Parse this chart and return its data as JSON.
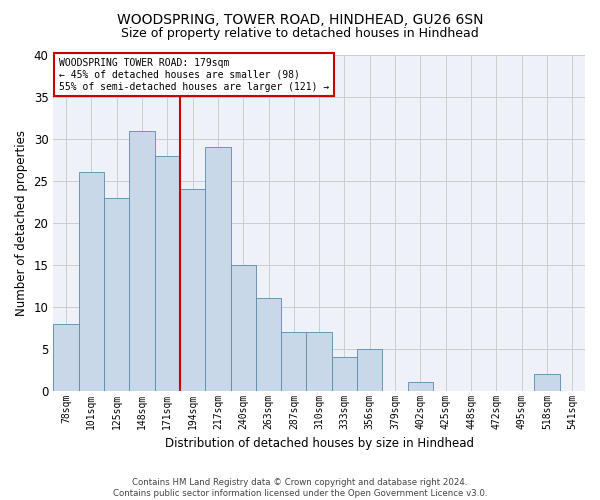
{
  "title1": "WOODSPRING, TOWER ROAD, HINDHEAD, GU26 6SN",
  "title2": "Size of property relative to detached houses in Hindhead",
  "xlabel": "Distribution of detached houses by size in Hindhead",
  "ylabel": "Number of detached properties",
  "categories": [
    "78sqm",
    "101sqm",
    "125sqm",
    "148sqm",
    "171sqm",
    "194sqm",
    "217sqm",
    "240sqm",
    "263sqm",
    "287sqm",
    "310sqm",
    "333sqm",
    "356sqm",
    "379sqm",
    "402sqm",
    "425sqm",
    "448sqm",
    "472sqm",
    "495sqm",
    "518sqm",
    "541sqm"
  ],
  "values": [
    8,
    26,
    23,
    31,
    28,
    24,
    29,
    15,
    11,
    7,
    7,
    4,
    5,
    0,
    1,
    0,
    0,
    0,
    0,
    2,
    0
  ],
  "bar_color": "#c8d8e8",
  "bar_edge_color": "#5a8ab0",
  "property_line_x": 4.5,
  "annotation_line1": "WOODSPRING TOWER ROAD: 179sqm",
  "annotation_line2": "← 45% of detached houses are smaller (98)",
  "annotation_line3": "55% of semi-detached houses are larger (121) →",
  "annotation_box_color": "#ffffff",
  "annotation_box_edge": "#cc0000",
  "vline_color": "#cc0000",
  "ylim": [
    0,
    40
  ],
  "yticks": [
    0,
    5,
    10,
    15,
    20,
    25,
    30,
    35,
    40
  ],
  "grid_color": "#cccccc",
  "footer_line1": "Contains HM Land Registry data © Crown copyright and database right 2024.",
  "footer_line2": "Contains public sector information licensed under the Open Government Licence v3.0.",
  "bg_color": "#eef2f8"
}
